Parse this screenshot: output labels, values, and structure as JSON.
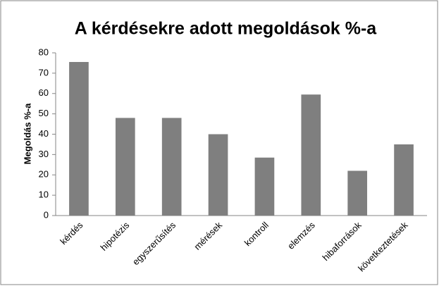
{
  "chart_data": {
    "type": "bar",
    "title": "A kérdésekre adott megoldások %-a",
    "y_label": "Megoldás %-a",
    "categories": [
      "kérdés",
      "hipotézis",
      "egyszerűsítés",
      "mérések",
      "kontroll",
      "elemzés",
      "hibaforrások",
      "következtetések"
    ],
    "values": [
      75.5,
      48,
      48,
      40,
      28.5,
      59.5,
      22,
      35
    ],
    "color": "#7f7f7f",
    "ylim": [
      0,
      80
    ],
    "yticks": [
      0,
      10,
      20,
      30,
      40,
      50,
      60,
      70,
      80
    ],
    "grid": false
  }
}
